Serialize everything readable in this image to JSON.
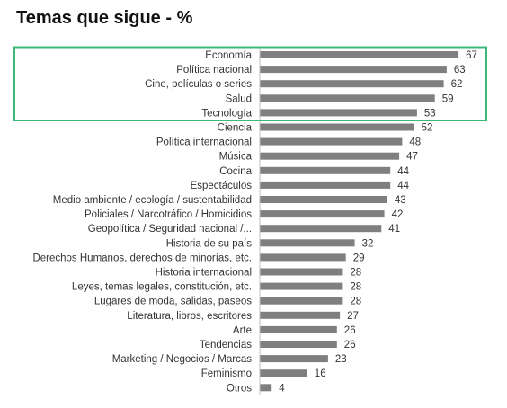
{
  "chart_data": {
    "type": "bar",
    "orientation": "horizontal",
    "title": "Temas que sigue - %",
    "categories": [
      "Economía",
      "Política nacional",
      "Cine, películas o series",
      "Salud",
      "Tecnología",
      "Ciencia",
      "Política internacional",
      "Música",
      "Cocina",
      "Espectáculos",
      "Medio ambiente / ecología / sustentabilidad",
      "Policiales / Narcotráfico / Homicidios",
      "Geopolítica / Seguridad nacional /...",
      "Historia de su país",
      "Derechos Humanos, derechos de minorías, etc.",
      "Historia internacional",
      "Leyes, temas legales, constitución, etc.",
      "Lugares de moda, salidas, paseos",
      "Literatura, libros, escritores",
      "Arte",
      "Tendencias",
      "Marketing / Negocios / Marcas",
      "Feminismo",
      "Otros"
    ],
    "values": [
      67,
      63,
      62,
      59,
      53,
      52,
      48,
      47,
      44,
      44,
      43,
      42,
      41,
      32,
      29,
      28,
      28,
      28,
      27,
      26,
      26,
      23,
      16,
      4
    ],
    "xlim": [
      0,
      70
    ],
    "grid": false,
    "highlight": {
      "indices": [
        0,
        1,
        2,
        3,
        4
      ],
      "color": "#3cb878"
    },
    "colors": {
      "bar": "#7f7f7f",
      "text": "#333333"
    }
  }
}
